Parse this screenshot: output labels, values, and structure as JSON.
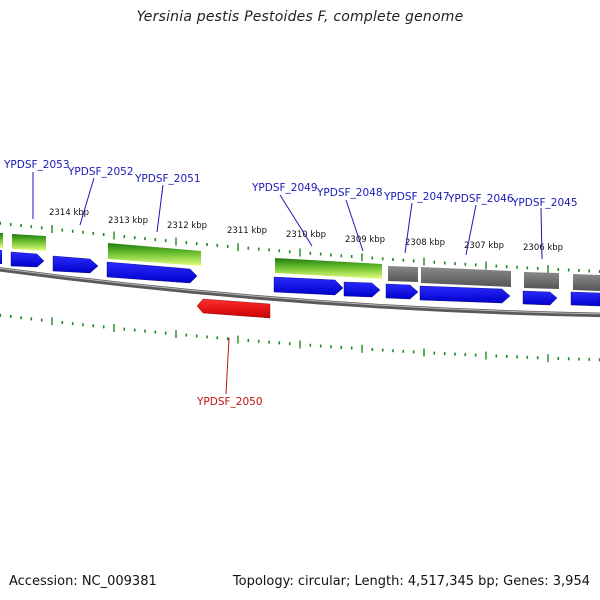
{
  "title": "Yersinia pestis Pestoides F, complete genome",
  "footer": {
    "accession": "Accession: NC_009381",
    "summary": "Topology: circular; Length: 4,517,345 bp; Genes: 3,954"
  },
  "colors": {
    "forward_gene": "#1010e0",
    "reverse_gene": "#e51010",
    "gray_feature": "#6e6e6e",
    "green_dark": "#2e8b10",
    "green_light": "#c8f060",
    "tick_green": "#1f8a1f",
    "label_blue": "#1a1ab8",
    "label_red": "#c01010",
    "backbone": "#7a7a7a"
  },
  "kbp_ticks": [
    "2314 kbp",
    "2313 kbp",
    "2312 kbp",
    "2311 kbp",
    "2310 kbp",
    "2309 kbp",
    "2308 kbp",
    "2307 kbp",
    "2306 kbp"
  ],
  "genes": [
    {
      "id": "YPDSF_2053",
      "strand": "forward"
    },
    {
      "id": "YPDSF_2052",
      "strand": "forward"
    },
    {
      "id": "YPDSF_2051",
      "strand": "forward"
    },
    {
      "id": "YPDSF_2050",
      "strand": "reverse"
    },
    {
      "id": "YPDSF_2049",
      "strand": "forward"
    },
    {
      "id": "YPDSF_2048",
      "strand": "forward"
    },
    {
      "id": "YPDSF_2047",
      "strand": "forward"
    },
    {
      "id": "YPDSF_2046",
      "strand": "forward"
    },
    {
      "id": "YPDSF_2045",
      "strand": "forward"
    }
  ]
}
